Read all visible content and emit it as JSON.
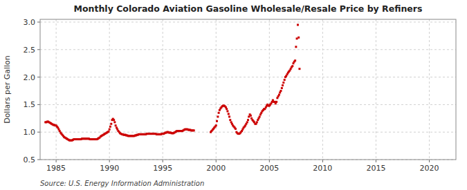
{
  "chart_data": {
    "type": "scatter",
    "title": "Monthly Colorado Aviation Gasoline Wholesale/Resale Price by Refiners",
    "y_label": "Dollars per Gallon",
    "source": "Source: U.S. Energy Information Administration",
    "xlim": [
      1983.5,
      2022.5
    ],
    "ylim": [
      0.5,
      3.05
    ],
    "xticks": [
      1985,
      1990,
      1995,
      2000,
      2005,
      2010,
      2015,
      2020
    ],
    "yticks": [
      0.5,
      {
        "value": 1.0,
        "label": "1.0"
      },
      1.5,
      {
        "value": 2.0,
        "label": "2.0"
      },
      2.5,
      {
        "value": 3.0,
        "label": "3.0"
      }
    ],
    "color": "#cc0000",
    "marker": "square",
    "grid": true,
    "x": [
      1984.0,
      1984.08,
      1984.17,
      1984.25,
      1984.33,
      1984.42,
      1984.5,
      1984.58,
      1984.67,
      1984.75,
      1984.83,
      1984.92,
      1985.0,
      1985.08,
      1985.17,
      1985.25,
      1985.33,
      1985.42,
      1985.5,
      1985.58,
      1985.67,
      1985.75,
      1985.83,
      1985.92,
      1986.0,
      1986.08,
      1986.17,
      1986.25,
      1986.33,
      1986.42,
      1986.5,
      1986.58,
      1986.67,
      1986.75,
      1986.83,
      1986.92,
      1987.0,
      1987.08,
      1987.17,
      1987.25,
      1987.33,
      1987.42,
      1987.5,
      1987.58,
      1987.67,
      1987.75,
      1987.83,
      1987.92,
      1988.0,
      1988.08,
      1988.17,
      1988.25,
      1988.33,
      1988.42,
      1988.5,
      1988.58,
      1988.67,
      1988.75,
      1988.83,
      1988.92,
      1989.0,
      1989.08,
      1989.17,
      1989.25,
      1989.33,
      1989.42,
      1989.5,
      1989.58,
      1989.67,
      1989.75,
      1989.83,
      1989.92,
      1990.0,
      1990.08,
      1990.17,
      1990.25,
      1990.33,
      1990.42,
      1990.5,
      1990.58,
      1990.67,
      1990.75,
      1990.83,
      1990.92,
      1991.0,
      1991.08,
      1991.17,
      1991.25,
      1991.33,
      1991.42,
      1991.5,
      1991.58,
      1991.67,
      1991.75,
      1991.83,
      1991.92,
      1992.0,
      1992.08,
      1992.17,
      1992.25,
      1992.33,
      1992.42,
      1992.5,
      1992.58,
      1992.67,
      1992.75,
      1992.83,
      1992.92,
      1993.0,
      1993.08,
      1993.17,
      1993.25,
      1993.33,
      1993.42,
      1993.5,
      1993.58,
      1993.67,
      1993.75,
      1993.83,
      1993.92,
      1994.0,
      1994.08,
      1994.17,
      1994.25,
      1994.33,
      1994.42,
      1994.5,
      1994.58,
      1994.67,
      1994.75,
      1994.83,
      1994.92,
      1995.0,
      1995.08,
      1995.17,
      1995.25,
      1995.33,
      1995.42,
      1995.5,
      1995.58,
      1995.67,
      1995.75,
      1995.83,
      1995.92,
      1996.0,
      1996.08,
      1996.17,
      1996.25,
      1996.33,
      1996.42,
      1996.5,
      1996.58,
      1996.67,
      1996.75,
      1996.83,
      1996.92,
      1997.0,
      1997.08,
      1997.17,
      1997.25,
      1997.33,
      1997.42,
      1997.5,
      1997.58,
      1997.67,
      1997.75,
      1997.83,
      1997.92,
      1999.5,
      1999.58,
      1999.67,
      1999.75,
      1999.83,
      1999.92,
      2000.0,
      2000.08,
      2000.17,
      2000.25,
      2000.33,
      2000.42,
      2000.5,
      2000.58,
      2000.67,
      2000.75,
      2000.83,
      2000.92,
      2001.0,
      2001.08,
      2001.17,
      2001.25,
      2001.33,
      2001.42,
      2001.5,
      2001.58,
      2001.67,
      2001.75,
      2001.83,
      2001.92,
      2002.0,
      2002.08,
      2002.17,
      2002.25,
      2002.33,
      2002.42,
      2002.5,
      2002.58,
      2002.67,
      2002.75,
      2002.83,
      2002.92,
      2003.0,
      2003.08,
      2003.17,
      2003.25,
      2003.33,
      2003.42,
      2003.5,
      2003.58,
      2003.67,
      2003.75,
      2003.83,
      2003.92,
      2004.0,
      2004.08,
      2004.17,
      2004.25,
      2004.33,
      2004.42,
      2004.5,
      2004.58,
      2004.67,
      2004.75,
      2004.83,
      2004.92,
      2005.0,
      2005.08,
      2005.17,
      2005.25,
      2005.33,
      2005.42,
      2005.5,
      2005.58,
      2005.67,
      2005.75,
      2005.83,
      2005.92,
      2006.0,
      2006.08,
      2006.17,
      2006.25,
      2006.33,
      2006.42,
      2006.5,
      2006.58,
      2006.67,
      2006.75,
      2006.83,
      2006.92,
      2007.0,
      2007.08,
      2007.17,
      2007.25,
      2007.33,
      2007.42,
      2007.5,
      2007.58,
      2007.67,
      2007.75,
      2007.83
    ],
    "values": [
      1.18,
      1.18,
      1.19,
      1.19,
      1.18,
      1.17,
      1.16,
      1.15,
      1.14,
      1.13,
      1.13,
      1.12,
      1.12,
      1.1,
      1.08,
      1.05,
      1.02,
      0.99,
      0.97,
      0.95,
      0.93,
      0.91,
      0.9,
      0.89,
      0.88,
      0.87,
      0.86,
      0.85,
      0.85,
      0.85,
      0.85,
      0.86,
      0.87,
      0.87,
      0.87,
      0.87,
      0.87,
      0.87,
      0.87,
      0.87,
      0.87,
      0.88,
      0.88,
      0.88,
      0.88,
      0.88,
      0.88,
      0.88,
      0.88,
      0.88,
      0.87,
      0.87,
      0.87,
      0.87,
      0.87,
      0.87,
      0.87,
      0.87,
      0.87,
      0.88,
      0.89,
      0.9,
      0.92,
      0.93,
      0.94,
      0.95,
      0.96,
      0.97,
      0.98,
      0.99,
      1.0,
      1.01,
      1.05,
      1.1,
      1.15,
      1.22,
      1.24,
      1.22,
      1.18,
      1.12,
      1.08,
      1.05,
      1.02,
      1.0,
      0.98,
      0.97,
      0.96,
      0.96,
      0.95,
      0.95,
      0.95,
      0.94,
      0.94,
      0.93,
      0.93,
      0.93,
      0.93,
      0.93,
      0.93,
      0.93,
      0.93,
      0.94,
      0.94,
      0.95,
      0.95,
      0.96,
      0.96,
      0.96,
      0.96,
      0.96,
      0.96,
      0.96,
      0.96,
      0.96,
      0.97,
      0.97,
      0.97,
      0.97,
      0.97,
      0.97,
      0.97,
      0.97,
      0.97,
      0.97,
      0.97,
      0.96,
      0.96,
      0.96,
      0.96,
      0.96,
      0.96,
      0.97,
      0.97,
      0.97,
      0.98,
      0.99,
      0.99,
      1.0,
      1.0,
      0.99,
      0.99,
      0.99,
      0.98,
      0.98,
      0.98,
      0.99,
      1.0,
      1.01,
      1.02,
      1.02,
      1.02,
      1.02,
      1.02,
      1.02,
      1.02,
      1.03,
      1.04,
      1.05,
      1.05,
      1.05,
      1.05,
      1.04,
      1.04,
      1.04,
      1.03,
      1.03,
      1.03,
      1.03,
      1.0,
      1.02,
      1.04,
      1.06,
      1.08,
      1.1,
      1.12,
      1.2,
      1.28,
      1.35,
      1.4,
      1.43,
      1.45,
      1.47,
      1.48,
      1.48,
      1.47,
      1.45,
      1.42,
      1.38,
      1.33,
      1.28,
      1.22,
      1.18,
      1.15,
      1.12,
      1.1,
      1.08,
      1.06,
      1.0,
      0.98,
      0.97,
      0.97,
      0.98,
      1.0,
      1.02,
      1.05,
      1.08,
      1.1,
      1.12,
      1.15,
      1.18,
      1.22,
      1.28,
      1.32,
      1.3,
      1.25,
      1.22,
      1.2,
      1.18,
      1.15,
      1.15,
      1.18,
      1.22,
      1.25,
      1.28,
      1.32,
      1.35,
      1.38,
      1.4,
      1.42,
      1.42,
      1.45,
      1.48,
      1.5,
      1.48,
      1.48,
      1.5,
      1.52,
      1.55,
      1.58,
      1.55,
      1.55,
      1.52,
      1.55,
      1.62,
      1.65,
      1.68,
      1.72,
      1.75,
      1.8,
      1.85,
      1.9,
      1.95,
      2.0,
      2.02,
      2.05,
      2.08,
      2.1,
      2.12,
      2.15,
      2.18,
      2.2,
      2.25,
      2.28,
      2.3,
      2.55,
      2.7,
      2.95,
      2.72,
      2.15
    ]
  }
}
